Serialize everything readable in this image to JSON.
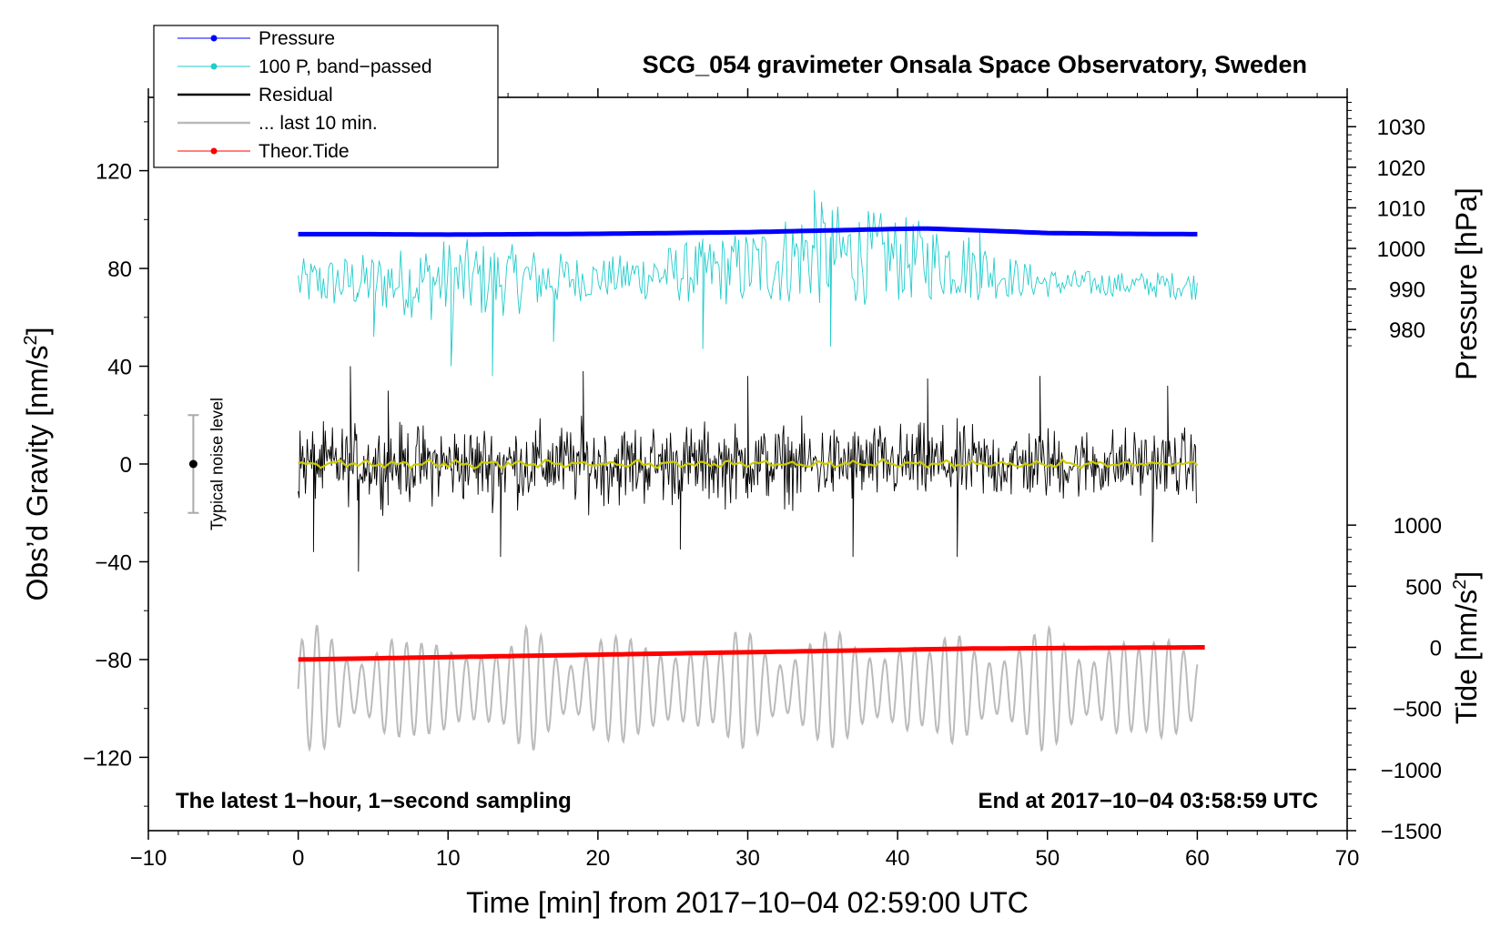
{
  "chart_data": {
    "type": "line",
    "title": "SCG_054 gravimeter Onsala Space Observatory, Sweden",
    "xlabel": "Time [min] from 2017−10−04 02:59:00 UTC",
    "ylabel_left": "Obs’d Gravity [nm/s",
    "ylabel_left_sup": "2",
    "ylabel_left_end": "]",
    "ylabel_right_top": "Pressure [hPa]",
    "ylabel_right_bottom": "Tide [nm/s",
    "ylabel_right_bottom_sup": "2",
    "ylabel_right_bottom_end": "]",
    "xlim": [
      -10,
      70
    ],
    "ylim": [
      -150,
      150
    ],
    "xticks": [
      -10,
      0,
      10,
      20,
      30,
      40,
      50,
      60,
      70
    ],
    "xtick_labels": [
      "−10",
      "0",
      "10",
      "20",
      "30",
      "40",
      "50",
      "60",
      "70"
    ],
    "yticks": [
      -120,
      -80,
      -40,
      0,
      40,
      80,
      120
    ],
    "ytick_labels": [
      "−120",
      "−80",
      "−40",
      "0",
      "40",
      "80",
      "120"
    ],
    "pressure_axis": {
      "ticks": [
        980,
        990,
        1000,
        1010,
        1020,
        1030
      ],
      "labels": [
        "980",
        "990",
        "1000",
        "1010",
        "1020",
        "1030"
      ],
      "map": {
        "value_a": 980,
        "gravity_a": 55,
        "value_b": 1030,
        "gravity_b": 138
      }
    },
    "tide_axis": {
      "ticks": [
        -1500,
        -1000,
        -500,
        0,
        500,
        1000
      ],
      "labels": [
        "−1500",
        "−1000",
        "−500",
        "0",
        "500",
        "1000"
      ],
      "map": {
        "value_a": -1500,
        "gravity_a": -150,
        "value_b": 1000,
        "gravity_b": -25
      }
    },
    "series": [
      {
        "name": "Pressure",
        "color": "#0000ff",
        "x": [
          0,
          5,
          10,
          15,
          20,
          25,
          30,
          35,
          40,
          42,
          45,
          50,
          55,
          60
        ],
        "values": [
          1003.5,
          1003.5,
          1003.4,
          1003.5,
          1003.6,
          1003.8,
          1004.0,
          1004.4,
          1004.8,
          1004.9,
          1004.5,
          1003.8,
          1003.6,
          1003.5
        ]
      },
      {
        "name": "100 P, band−passed",
        "color": "#22cccc",
        "envelope_x": [
          0,
          5,
          10,
          15,
          20,
          25,
          30,
          35,
          40,
          45,
          48,
          50,
          55,
          60
        ],
        "envelope_half_width": [
          10,
          12,
          18,
          14,
          8,
          12,
          16,
          22,
          18,
          14,
          8,
          6,
          5,
          6
        ],
        "offset_x": [
          0,
          20,
          30,
          34,
          40,
          44,
          48,
          50,
          60
        ],
        "offset_values": [
          74,
          76,
          80,
          86,
          84,
          82,
          76,
          74,
          73
        ],
        "spikes": [
          [
            4,
            68
          ],
          [
            5,
            52
          ],
          [
            10.2,
            40
          ],
          [
            13,
            36
          ],
          [
            17,
            50
          ],
          [
            27,
            47
          ],
          [
            34.5,
            112
          ],
          [
            35.5,
            48
          ],
          [
            45.5,
            95
          ]
        ]
      },
      {
        "name": "Residual",
        "color": "#000000",
        "envelope_x": [
          0,
          10,
          20,
          30,
          40,
          50,
          60
        ],
        "envelope_half_width": [
          16,
          17,
          18,
          17,
          17,
          16,
          15
        ],
        "spikes": [
          [
            1,
            -36
          ],
          [
            3.5,
            40
          ],
          [
            4,
            -44
          ],
          [
            6,
            30
          ],
          [
            13.5,
            -38
          ],
          [
            19,
            38
          ],
          [
            25.5,
            -35
          ],
          [
            30,
            36
          ],
          [
            37,
            -38
          ],
          [
            42,
            35
          ],
          [
            44,
            -38
          ],
          [
            49.5,
            36
          ],
          [
            57,
            -32
          ],
          [
            58,
            32
          ]
        ]
      },
      {
        "name": "... last 10 min.",
        "color": "#bbbbbb",
        "note": "shown as oscillating trace centred near -92 with amplitude ~28"
      },
      {
        "name": "Theor.Tide",
        "color": "#ff0000",
        "x": [
          0,
          15,
          30,
          45,
          60.5
        ],
        "tide_values": [
          -100,
          -70,
          -40,
          -10,
          0
        ]
      }
    ],
    "legend": {
      "placement": "top-left",
      "entries": [
        {
          "label": "Pressure",
          "color": "#0000ff",
          "marker": true,
          "width": "thin"
        },
        {
          "label": "100 P, band−passed",
          "color": "#22cccc",
          "marker": true,
          "width": "thin"
        },
        {
          "label": "Residual",
          "color": "#000000",
          "marker": false,
          "width": "thick"
        },
        {
          "label": "... last 10 min.",
          "color": "#bbbbbb",
          "marker": false,
          "width": "thick"
        },
        {
          "label": "Theor.Tide",
          "color": "#ff0000",
          "marker": true,
          "width": "thin"
        }
      ]
    },
    "annotations": {
      "left_note": "The latest 1−hour, 1−second sampling",
      "right_note": "End at 2017−10−04 03:58:59 UTC",
      "noise_label": "Typical noise level",
      "noise_center": {
        "x": -7,
        "y": 0
      },
      "noise_range": [
        -20,
        20
      ]
    },
    "residual_smooth_color": "#cccc00",
    "grid": false
  }
}
